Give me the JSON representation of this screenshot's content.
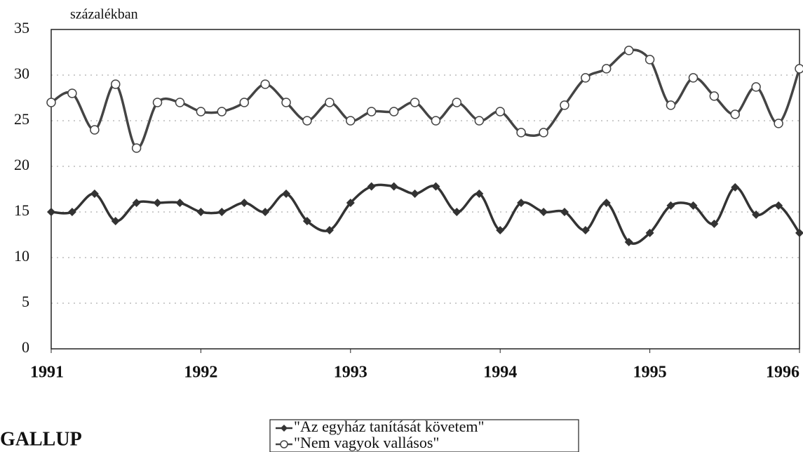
{
  "chart_data": {
    "type": "line",
    "y_label": "százalékban",
    "source": "GALLUP",
    "x": [
      1991,
      1991.14,
      1991.29,
      1991.43,
      1991.57,
      1991.71,
      1991.86,
      1992,
      1992.14,
      1992.29,
      1992.43,
      1992.57,
      1992.71,
      1992.86,
      1993,
      1993.14,
      1993.29,
      1993.43,
      1993.57,
      1993.71,
      1993.86,
      1994,
      1994.14,
      1994.29,
      1994.43,
      1994.57,
      1994.71,
      1994.86,
      1995,
      1995.14,
      1995.29,
      1995.43,
      1995.57,
      1995.71,
      1995.86,
      1996
    ],
    "xlim": [
      1991,
      1996
    ],
    "xticks": [
      1991,
      1992,
      1993,
      1994,
      1995,
      1996
    ],
    "ylim": [
      0,
      35
    ],
    "yticks": [
      0,
      5,
      10,
      15,
      20,
      25,
      30,
      35
    ],
    "grid": true,
    "legend": "bottom",
    "series": [
      {
        "name": "\"Az egyház tanítását követem\"",
        "color": "#333333",
        "marker": "diamond",
        "values": [
          15,
          15,
          17,
          14,
          16,
          16,
          16,
          15,
          15,
          16,
          15,
          17,
          14,
          13,
          16,
          17.8,
          17.8,
          17,
          17.8,
          15,
          17,
          13,
          16,
          15,
          15,
          13,
          16,
          11.7,
          12.7,
          15.7,
          15.7,
          13.7,
          17.7,
          14.7,
          15.7,
          12.7
        ]
      },
      {
        "name": "\"Nem vagyok vallásos\"",
        "color": "#444444",
        "marker": "circle",
        "values": [
          27,
          28,
          24,
          29,
          22,
          27,
          27,
          26,
          26,
          27,
          29,
          27,
          25,
          27,
          25,
          26,
          26,
          27,
          25,
          27,
          25,
          26,
          23.7,
          23.7,
          26.7,
          29.7,
          30.7,
          32.7,
          31.7,
          26.7,
          29.7,
          27.7,
          25.7,
          28.7,
          24.7,
          30.7
        ]
      }
    ]
  }
}
